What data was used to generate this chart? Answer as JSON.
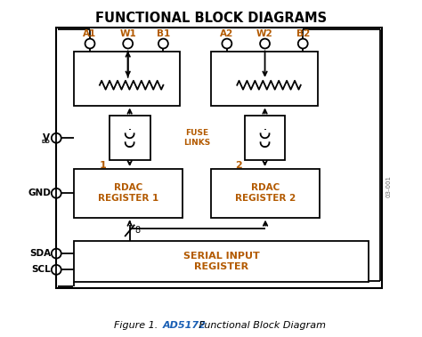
{
  "title": "FUNCTIONAL BLOCK DIAGRAMS",
  "caption_normal": "Figure 1. ",
  "caption_blue": "AD5172",
  "caption_rest": " Functional Block Diagram",
  "bg_color": "#ffffff",
  "line_color": "#000000",
  "blue_color": "#1a5fb4",
  "orange_color": "#b35a00",
  "pin_labels_top": [
    "A1",
    "W1",
    "B1",
    "A2",
    "W2",
    "B2"
  ],
  "fuse_label": "FUSE\nLINKS",
  "rdac1_label": "RDAC\nREGISTER 1",
  "rdac2_label": "RDAC\nREGISTER 2",
  "sir_label": "SERIAL INPUT\nREGISTER",
  "label_1": "1",
  "label_2": "2",
  "label_8": "8",
  "watermark": "03-001",
  "vdd_label": "V",
  "vdd_sub": "DD",
  "gnd_label": "GND",
  "sda_label": "SDA",
  "scl_label": "SCL"
}
